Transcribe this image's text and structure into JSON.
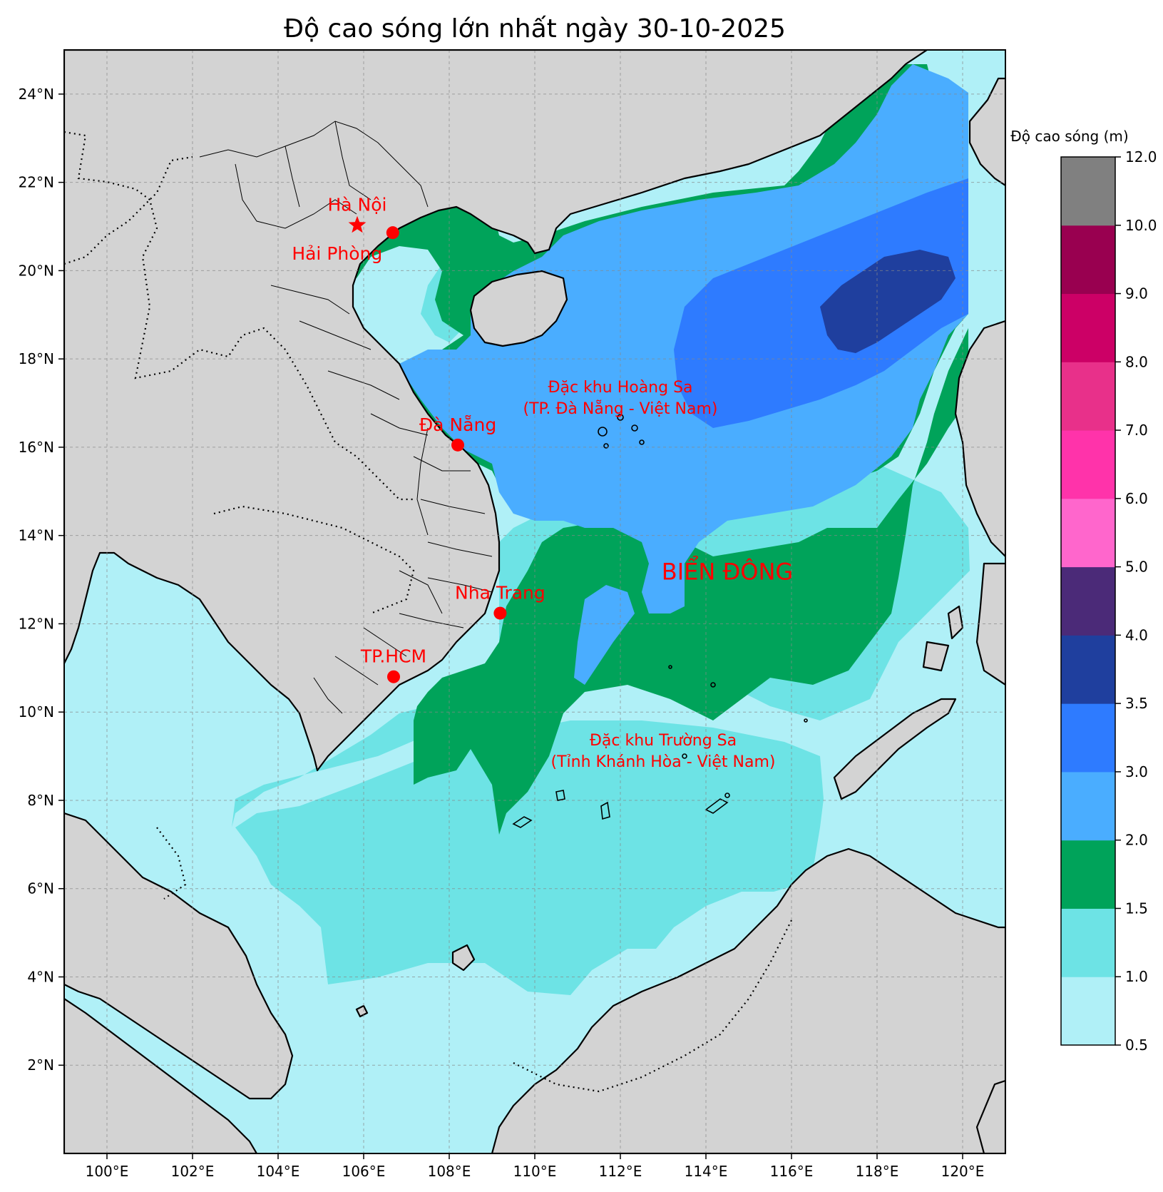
{
  "title": "Độ cao sóng lớn nhất ngày 30-10-2025",
  "map": {
    "extent": {
      "lon": [
        99,
        121
      ],
      "lat": [
        0,
        25
      ]
    },
    "lon_ticks": [
      {
        "value": 100,
        "label": "100°E"
      },
      {
        "value": 102,
        "label": "102°E"
      },
      {
        "value": 104,
        "label": "104°E"
      },
      {
        "value": 106,
        "label": "106°E"
      },
      {
        "value": 108,
        "label": "108°E"
      },
      {
        "value": 110,
        "label": "110°E"
      },
      {
        "value": 112,
        "label": "112°E"
      },
      {
        "value": 114,
        "label": "114°E"
      },
      {
        "value": 116,
        "label": "116°E"
      },
      {
        "value": 118,
        "label": "118°E"
      },
      {
        "value": 120,
        "label": "120°E"
      }
    ],
    "lat_ticks": [
      {
        "value": 2,
        "label": "2°N"
      },
      {
        "value": 4,
        "label": "4°N"
      },
      {
        "value": 6,
        "label": "6°N"
      },
      {
        "value": 8,
        "label": "8°N"
      },
      {
        "value": 10,
        "label": "10°N"
      },
      {
        "value": 12,
        "label": "12°N"
      },
      {
        "value": 14,
        "label": "14°N"
      },
      {
        "value": 16,
        "label": "16°N"
      },
      {
        "value": 18,
        "label": "18°N"
      },
      {
        "value": 20,
        "label": "20°N"
      },
      {
        "value": 22,
        "label": "22°N"
      },
      {
        "value": 24,
        "label": "24°N"
      }
    ],
    "grid": true,
    "land_color": "#d3d3d3",
    "coast_color": "#000000"
  },
  "cities": [
    {
      "name": "Hà Nội",
      "lon": 105.85,
      "lat": 21.03,
      "marker": "star"
    },
    {
      "name": "Hải Phòng",
      "lon": 106.68,
      "lat": 20.86,
      "marker": "circle"
    },
    {
      "name": "Đà Nẵng",
      "lon": 108.2,
      "lat": 16.05,
      "marker": "circle"
    },
    {
      "name": "Nha Trang",
      "lon": 109.19,
      "lat": 12.24,
      "marker": "circle"
    },
    {
      "name": "TP.HCM",
      "lon": 106.7,
      "lat": 10.8,
      "marker": "circle"
    }
  ],
  "annotations": [
    {
      "lines": [
        "Đặc khu Hoàng Sa",
        "(TP. Đà Nẵng - Việt Nam)"
      ],
      "lon": 112.0,
      "lat": 17.0
    },
    {
      "lines": [
        "Đặc khu Trường Sa",
        "(Tỉnh Khánh Hòa - Việt Nam)"
      ],
      "lon": 113.0,
      "lat": 9.0
    },
    {
      "lines": [
        "BIỂN ĐÔNG"
      ],
      "lon": 114.5,
      "lat": 13.0
    }
  ],
  "colorbar": {
    "label": "Độ cao sóng (m)",
    "levels": [
      0.5,
      1.0,
      1.5,
      2.0,
      3.0,
      3.5,
      4.0,
      5.0,
      6.0,
      7.0,
      8.0,
      9.0,
      10.0,
      12.0
    ],
    "tick_labels": [
      "0.5",
      "1.0",
      "1.5",
      "2.0",
      "3.0",
      "3.5",
      "4.0",
      "5.0",
      "6.0",
      "7.0",
      "8.0",
      "9.0",
      "10.0",
      "12.0"
    ],
    "colors": [
      "#b0f0f7",
      "#6de3e5",
      "#00a35a",
      "#4aadff",
      "#2e7bff",
      "#1f3f9e",
      "#4b2a78",
      "#ff66cc",
      "#ff33aa",
      "#e8308a",
      "#cc0066",
      "#990050",
      "#808080"
    ]
  },
  "wave_field": {
    "unit": "m",
    "zones": [
      {
        "range": "1.5-2.0",
        "region": "Gulf of Tonkin south / central coast / south-central sea"
      },
      {
        "range": "2.0-3.0",
        "region": "north-central South China Sea"
      },
      {
        "range": "3.0-3.5",
        "region": "northeast, around 114-120°E 16-21°N"
      },
      {
        "range": "3.5-4.0",
        "region": "core near 117-119°E 18.5-20.5°N"
      },
      {
        "range": "1.0-1.5",
        "region": "southern sea"
      },
      {
        "range": "0.5-1.0",
        "region": "Gulf of Thailand, southern coasts"
      }
    ]
  }
}
